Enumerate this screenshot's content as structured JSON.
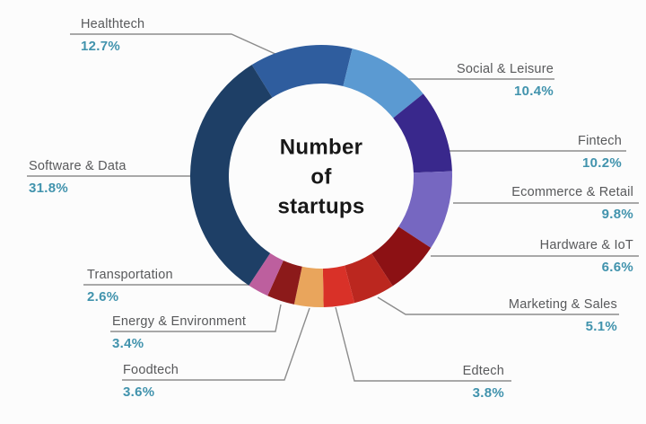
{
  "chart_data": {
    "type": "pie",
    "subtype": "donut",
    "title": "Number of startups",
    "title_lines": [
      "Number",
      "of",
      "startups"
    ],
    "unit": "%",
    "start_angle_deg": -32,
    "direction": "clockwise",
    "legend_position": "callout-labels-around-donut",
    "segments": [
      {
        "label": "Healthtech",
        "value": 12.7,
        "percent_label": "12.7%",
        "color": "#2f5d9e"
      },
      {
        "label": "Social & Leisure",
        "value": 10.4,
        "percent_label": "10.4%",
        "color": "#5b9ad2"
      },
      {
        "label": "Fintech",
        "value": 10.2,
        "percent_label": "10.2%",
        "color": "#39288c"
      },
      {
        "label": "Ecommerce & Retail",
        "value": 9.8,
        "percent_label": "9.8%",
        "color": "#7667c1"
      },
      {
        "label": "Hardware & IoT",
        "value": 6.6,
        "percent_label": "6.6%",
        "color": "#8c1114"
      },
      {
        "label": "Marketing & Sales",
        "value": 5.1,
        "percent_label": "5.1%",
        "color": "#bb271f"
      },
      {
        "label": "Edtech",
        "value": 3.8,
        "percent_label": "3.8%",
        "color": "#d93128"
      },
      {
        "label": "Foodtech",
        "value": 3.6,
        "percent_label": "3.6%",
        "color": "#e9a55c"
      },
      {
        "label": "Energy & Environment",
        "value": 3.4,
        "percent_label": "3.4%",
        "color": "#8c1a1a"
      },
      {
        "label": "Transportation",
        "value": 2.6,
        "percent_label": "2.6%",
        "color": "#bd5f9e"
      },
      {
        "label": "Software & Data",
        "value": 31.8,
        "percent_label": "31.8%",
        "color": "#1e3f66"
      }
    ]
  },
  "colors": {
    "background": "#fcfcfc",
    "title_text": "#181818",
    "label_text": "#58595b",
    "percent_text": "#4193ad",
    "leader_line": "#8c8c8c",
    "donut_hole": "#fcfcfc"
  }
}
